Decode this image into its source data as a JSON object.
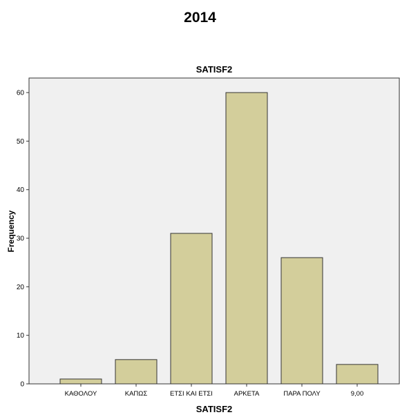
{
  "page": {
    "heading": "2014"
  },
  "chart_data": {
    "type": "bar",
    "title": "SATISF2",
    "xlabel": "SATISF2",
    "ylabel": "Frequency",
    "categories": [
      "ΚΑΘΟΛΟΥ",
      "ΚΑΠΩΣ",
      "ΕΤΣΙ ΚΑΙ ΕΤΣΙ",
      "ΑΡΚΕΤΑ",
      "ΠΑΡΑ ΠΟΛΥ",
      "9,00"
    ],
    "values": [
      1,
      5,
      31,
      60,
      26,
      4
    ],
    "ylim": [
      0,
      63
    ],
    "yticks": [
      0,
      10,
      20,
      30,
      40,
      50,
      60
    ],
    "grid": false,
    "colors": {
      "bar_fill": "#d3ce9b",
      "bar_stroke": "#333333",
      "plot_bg": "#f0f0f0"
    }
  }
}
